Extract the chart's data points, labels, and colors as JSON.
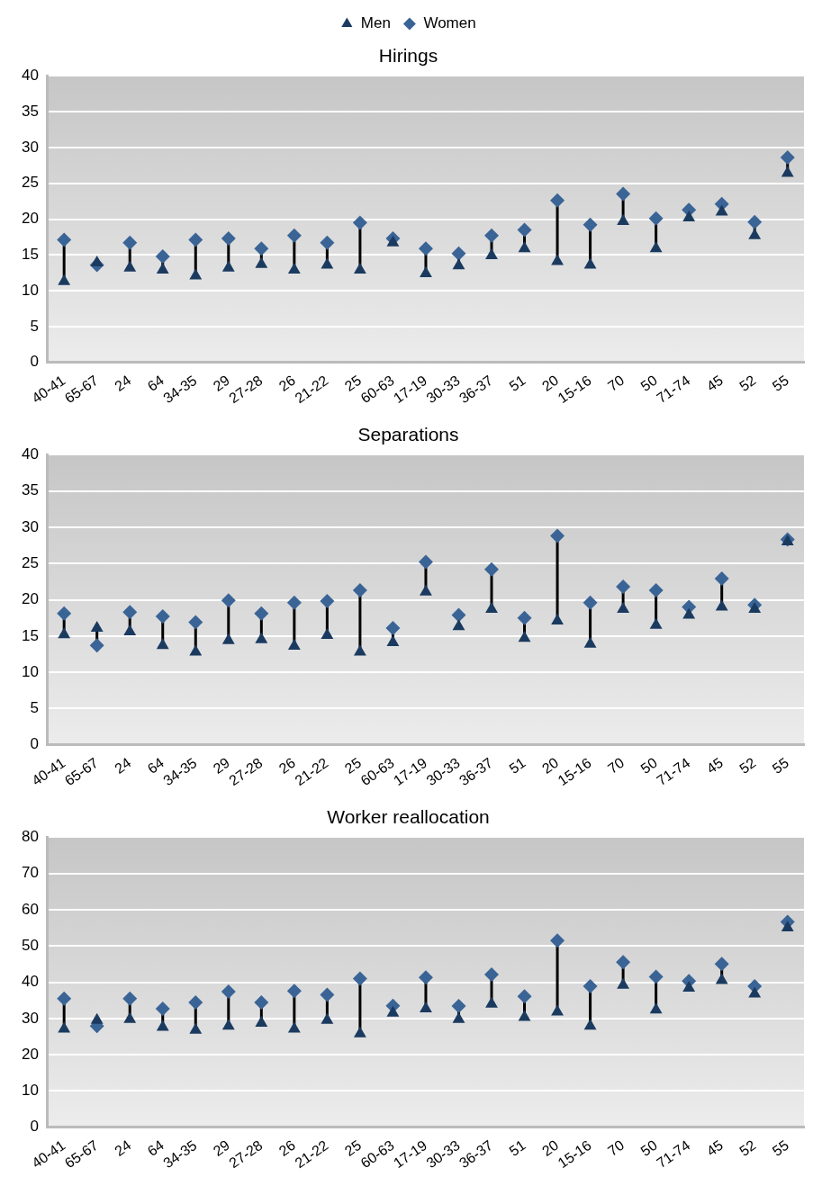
{
  "chart_data": [
    {
      "type": "scatter",
      "title": "Hirings",
      "categories": [
        "40-41",
        "65-67",
        "24",
        "64",
        "34-35",
        "29",
        "27-28",
        "26",
        "21-22",
        "25",
        "60-63",
        "17-19",
        "30-33",
        "36-37",
        "51",
        "20",
        "15-16",
        "70",
        "50",
        "71-74",
        "45",
        "52",
        "55"
      ],
      "series": [
        {
          "name": "Men",
          "color": "#1b3a5f",
          "marker": "triangle",
          "values": [
            11.3,
            13.9,
            13.2,
            12.9,
            12.1,
            13.2,
            13.7,
            12.9,
            13.6,
            12.9,
            16.7,
            12.4,
            13.5,
            14.9,
            15.9,
            14.1,
            13.6,
            19.7,
            15.9,
            20.2,
            21.0,
            17.7,
            26.4
          ]
        },
        {
          "name": "Women",
          "color": "#3a6496",
          "marker": "diamond",
          "values": [
            17.1,
            13.6,
            16.7,
            14.8,
            17.1,
            17.3,
            15.9,
            17.7,
            16.7,
            19.5,
            17.3,
            15.9,
            15.2,
            17.7,
            18.5,
            22.6,
            19.2,
            23.5,
            20.1,
            21.3,
            22.1,
            19.6,
            28.6
          ]
        }
      ],
      "ylim": [
        0,
        40
      ],
      "yticks": [
        0,
        5,
        10,
        15,
        20,
        25,
        30,
        35,
        40
      ],
      "grid": "y",
      "legend": "top"
    },
    {
      "type": "scatter",
      "title": "Separations",
      "categories": [
        "40-41",
        "65-67",
        "24",
        "64",
        "34-35",
        "29",
        "27-28",
        "26",
        "21-22",
        "25",
        "60-63",
        "17-19",
        "30-33",
        "36-37",
        "51",
        "20",
        "15-16",
        "70",
        "50",
        "71-74",
        "45",
        "52",
        "55"
      ],
      "series": [
        {
          "color": "#1b3a5f",
          "marker": "triangle",
          "values": [
            15.2,
            16.1,
            15.6,
            13.7,
            12.8,
            14.4,
            14.5,
            13.6,
            15.1,
            12.8,
            14.1,
            21.1,
            16.3,
            18.7,
            14.7,
            17.1,
            13.9,
            18.7,
            16.5,
            17.9,
            19.0,
            18.7,
            28.0
          ]
        },
        {
          "color": "#3a6496",
          "marker": "diamond",
          "values": [
            18.1,
            13.7,
            18.3,
            17.7,
            16.9,
            19.9,
            18.1,
            19.6,
            19.8,
            21.3,
            16.1,
            25.2,
            17.9,
            24.2,
            17.5,
            28.8,
            19.6,
            21.8,
            21.3,
            19.0,
            22.9,
            19.3,
            28.3
          ]
        }
      ],
      "ylim": [
        0,
        40
      ],
      "yticks": [
        0,
        5,
        10,
        15,
        20,
        25,
        30,
        35,
        40
      ],
      "grid": "y"
    },
    {
      "type": "scatter",
      "title": "Worker reallocation",
      "categories": [
        "40-41",
        "65-67",
        "24",
        "64",
        "34-35",
        "29",
        "27-28",
        "26",
        "21-22",
        "25",
        "60-63",
        "17-19",
        "30-33",
        "36-37",
        "51",
        "20",
        "15-16",
        "70",
        "50",
        "71-74",
        "45",
        "52",
        "55"
      ],
      "series": [
        {
          "color": "#1b3a5f",
          "marker": "triangle",
          "values": [
            27.1,
            29.5,
            29.8,
            27.6,
            26.8,
            27.9,
            28.7,
            27.1,
            29.5,
            25.8,
            31.5,
            32.7,
            29.8,
            34.0,
            30.3,
            31.8,
            27.9,
            39.2,
            32.4,
            38.4,
            40.5,
            36.8,
            55.0
          ]
        },
        {
          "color": "#3a6496",
          "marker": "diamond",
          "values": [
            35.5,
            27.9,
            35.5,
            32.7,
            34.4,
            37.4,
            34.4,
            37.6,
            36.5,
            41.0,
            33.5,
            41.3,
            33.4,
            42.1,
            36.1,
            51.5,
            38.9,
            45.5,
            41.5,
            40.3,
            45.0,
            38.9,
            56.6
          ]
        }
      ],
      "ylim": [
        0,
        80
      ],
      "yticks": [
        0,
        10,
        20,
        30,
        40,
        50,
        60,
        70,
        80
      ],
      "grid": "y"
    }
  ]
}
